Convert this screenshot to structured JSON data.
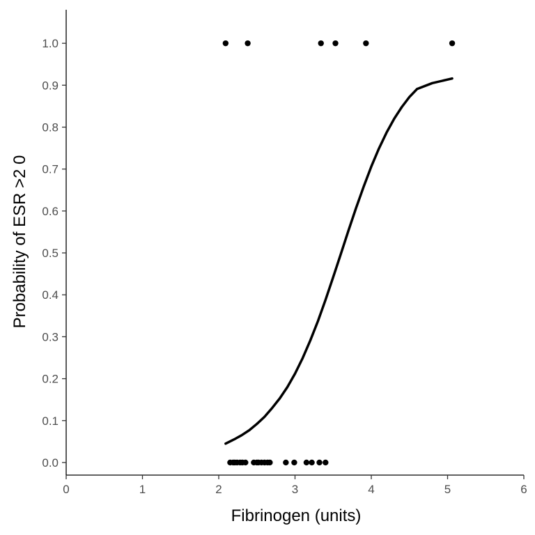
{
  "chart_data": {
    "type": "scatter",
    "title": "",
    "xlabel": "Fibrinogen (units)",
    "ylabel": "Probability of ESR >2 0",
    "xlim": [
      0,
      6
    ],
    "ylim": [
      -0.03,
      1.08
    ],
    "x_ticks": [
      0,
      1,
      2,
      3,
      4,
      5,
      6
    ],
    "y_ticks": [
      0.0,
      0.1,
      0.2,
      0.3,
      0.4,
      0.5,
      0.6,
      0.7,
      0.8,
      0.9,
      1.0
    ],
    "y_tick_labels": [
      "0.0",
      "0.1",
      "0.2",
      "0.3",
      "0.4",
      "0.5",
      "0.6",
      "0.7",
      "0.8",
      "0.9",
      "1.0"
    ],
    "grid": false,
    "legend": "none",
    "series": [
      {
        "type": "scatter",
        "points": [
          {
            "x": 2.09,
            "y": 1
          },
          {
            "x": 2.38,
            "y": 1
          },
          {
            "x": 3.34,
            "y": 1
          },
          {
            "x": 3.53,
            "y": 1
          },
          {
            "x": 3.93,
            "y": 1
          },
          {
            "x": 5.06,
            "y": 1
          },
          {
            "x": 2.15,
            "y": 0
          },
          {
            "x": 2.19,
            "y": 0
          },
          {
            "x": 2.21,
            "y": 0
          },
          {
            "x": 2.24,
            "y": 0
          },
          {
            "x": 2.28,
            "y": 0
          },
          {
            "x": 2.31,
            "y": 0
          },
          {
            "x": 2.35,
            "y": 0
          },
          {
            "x": 2.46,
            "y": 0
          },
          {
            "x": 2.5,
            "y": 0
          },
          {
            "x": 2.52,
            "y": 0
          },
          {
            "x": 2.56,
            "y": 0
          },
          {
            "x": 2.6,
            "y": 0
          },
          {
            "x": 2.64,
            "y": 0
          },
          {
            "x": 2.67,
            "y": 0
          },
          {
            "x": 2.88,
            "y": 0
          },
          {
            "x": 2.99,
            "y": 0
          },
          {
            "x": 3.15,
            "y": 0
          },
          {
            "x": 3.22,
            "y": 0
          },
          {
            "x": 3.32,
            "y": 0
          },
          {
            "x": 3.4,
            "y": 0
          }
        ],
        "color": "#000000"
      },
      {
        "type": "line",
        "points": [
          {
            "x": 2.09,
            "y": 0.045
          },
          {
            "x": 2.2,
            "y": 0.055
          },
          {
            "x": 2.3,
            "y": 0.065
          },
          {
            "x": 2.4,
            "y": 0.077
          },
          {
            "x": 2.5,
            "y": 0.092
          },
          {
            "x": 2.6,
            "y": 0.109
          },
          {
            "x": 2.7,
            "y": 0.13
          },
          {
            "x": 2.8,
            "y": 0.153
          },
          {
            "x": 2.9,
            "y": 0.18
          },
          {
            "x": 3.0,
            "y": 0.212
          },
          {
            "x": 3.1,
            "y": 0.249
          },
          {
            "x": 3.2,
            "y": 0.291
          },
          {
            "x": 3.3,
            "y": 0.337
          },
          {
            "x": 3.4,
            "y": 0.388
          },
          {
            "x": 3.5,
            "y": 0.442
          },
          {
            "x": 3.6,
            "y": 0.497
          },
          {
            "x": 3.7,
            "y": 0.553
          },
          {
            "x": 3.8,
            "y": 0.607
          },
          {
            "x": 3.9,
            "y": 0.658
          },
          {
            "x": 4.0,
            "y": 0.706
          },
          {
            "x": 4.1,
            "y": 0.749
          },
          {
            "x": 4.2,
            "y": 0.787
          },
          {
            "x": 4.3,
            "y": 0.82
          },
          {
            "x": 4.4,
            "y": 0.848
          },
          {
            "x": 4.5,
            "y": 0.872
          },
          {
            "x": 4.6,
            "y": 0.891
          },
          {
            "x": 4.8,
            "y": 0.905
          },
          {
            "x": 5.06,
            "y": 0.916
          }
        ],
        "color": "#000000"
      }
    ]
  }
}
